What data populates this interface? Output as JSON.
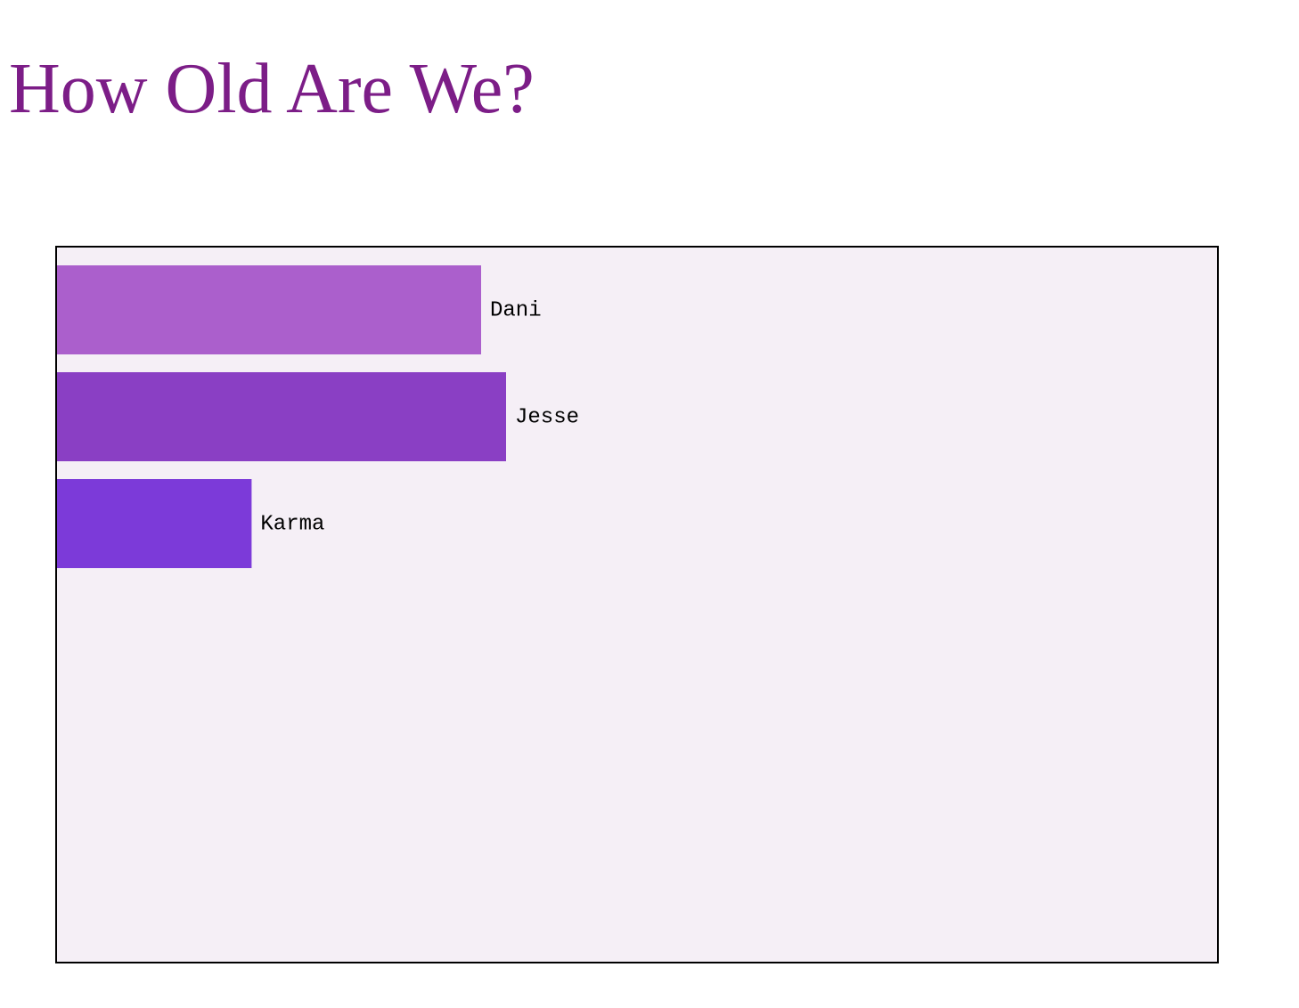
{
  "page": {
    "title": "How Old Are We?"
  },
  "chart_data": {
    "type": "bar",
    "orientation": "horizontal",
    "title": "How Old Are We?",
    "categories": [
      "Dani",
      "Jesse",
      "Karma"
    ],
    "values": [
      34,
      36,
      15.6
    ],
    "xlim": [
      0,
      93
    ],
    "colors": [
      "#ab5fcc",
      "#8a3fc4",
      "#7c3ad9"
    ],
    "background": "#f5eff6",
    "grid": false,
    "legend": "none"
  }
}
